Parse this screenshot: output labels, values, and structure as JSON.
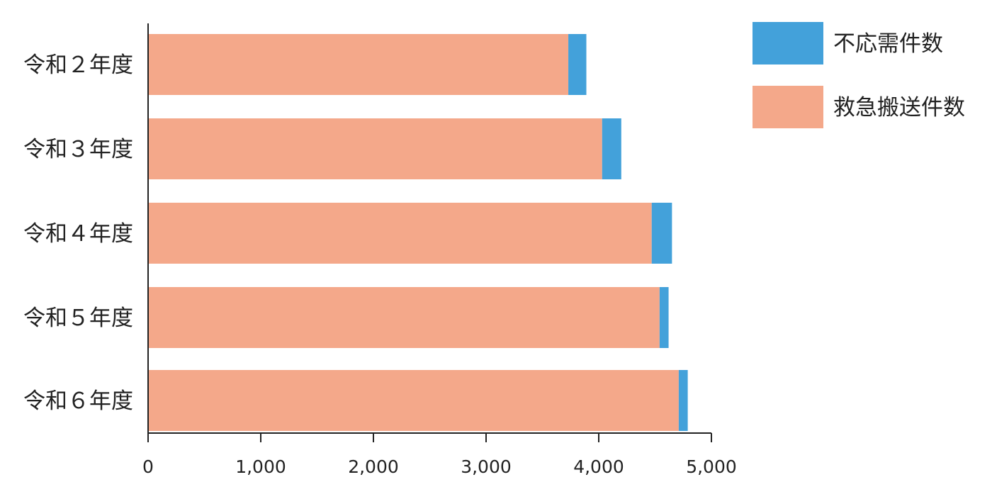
{
  "chart_data": {
    "type": "bar",
    "orientation": "horizontal",
    "stacked": true,
    "categories": [
      "令和２年度",
      "令和３年度",
      "令和４年度",
      "令和５年度",
      "令和６年度"
    ],
    "series": [
      {
        "name": "救急搬送件数",
        "color": "#f4a88a",
        "values": [
          3730,
          4030,
          4470,
          4540,
          4710
        ]
      },
      {
        "name": "不応需件数",
        "color": "#43a1da",
        "values": [
          160,
          170,
          180,
          80,
          80
        ]
      }
    ],
    "xlim": [
      0,
      5000
    ],
    "xticks": [
      0,
      1000,
      2000,
      3000,
      4000,
      5000
    ],
    "xtick_labels": [
      "0",
      "1,000",
      "2,000",
      "3,000",
      "4,000",
      "5,000"
    ],
    "legend": {
      "position": "top-right",
      "order": [
        "不応需件数",
        "救急搬送件数"
      ]
    },
    "grid": false,
    "title": "",
    "xlabel": "",
    "ylabel": ""
  }
}
